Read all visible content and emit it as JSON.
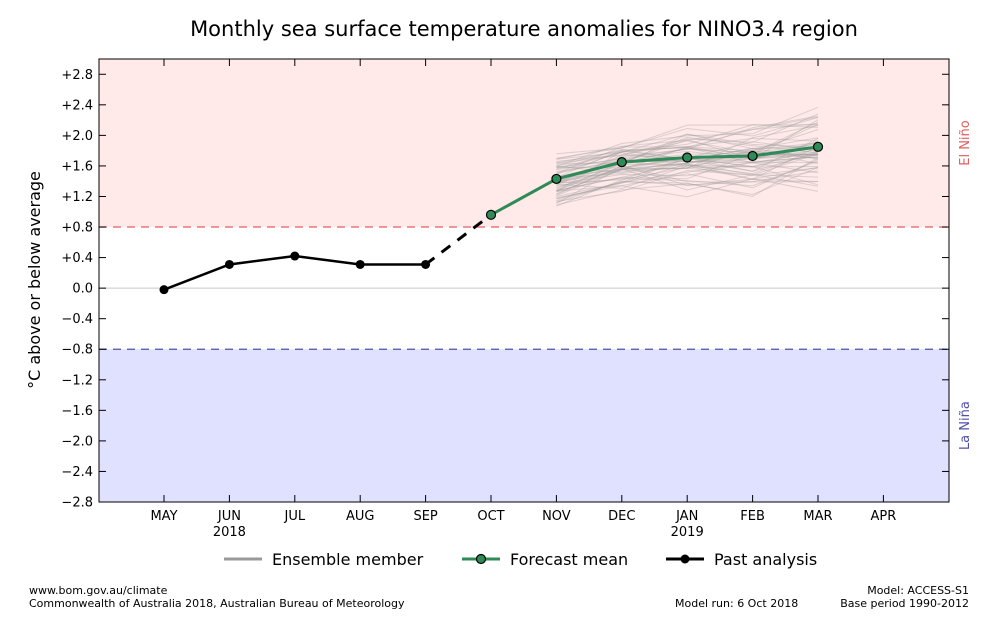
{
  "chart_data": {
    "type": "line",
    "title": "Monthly sea surface temperature anomalies for NINO3.4 region",
    "ylabel": "°C above or below average",
    "xlabel": "",
    "ylim": [
      -2.8,
      3.0
    ],
    "yticks": [
      -2.8,
      -2.4,
      -2.0,
      -1.6,
      -1.2,
      -0.8,
      -0.4,
      0.0,
      0.4,
      0.8,
      1.2,
      1.6,
      2.0,
      2.4,
      2.8
    ],
    "ytick_labels": [
      "−2.8",
      "−2.4",
      "−2.0",
      "−1.6",
      "−1.2",
      "−0.8",
      "−0.4",
      "0.0",
      "+0.4",
      "+0.8",
      "+1.2",
      "+1.6",
      "+2.0",
      "+2.4",
      "+2.8"
    ],
    "categories": [
      "MAY",
      "JUN",
      "JUL",
      "AUG",
      "SEP",
      "OCT",
      "NOV",
      "DEC",
      "JAN",
      "FEB",
      "MAR",
      "APR"
    ],
    "year_labels": [
      {
        "index": 1,
        "label": "2018"
      },
      {
        "index": 8,
        "label": "2019"
      }
    ],
    "thresholds": {
      "el_nino": 0.8,
      "la_nina": -0.8
    },
    "regions": {
      "el_nino_label": "El Niño",
      "la_nina_label": "La Niña",
      "el_nino_color": "#ffe9e9",
      "la_nina_color": "#e0e0ff",
      "el_nino_line": "#e06060",
      "la_nina_line": "#5050a8"
    },
    "series": [
      {
        "name": "Past analysis",
        "color": "#000000",
        "x": [
          0,
          1,
          2,
          3,
          4
        ],
        "values": [
          -0.02,
          0.31,
          0.42,
          0.31,
          0.31
        ]
      },
      {
        "name": "Forecast mean",
        "color": "#2e8b57",
        "x": [
          5,
          6,
          7,
          8,
          9,
          10
        ],
        "values": [
          0.96,
          1.43,
          1.65,
          1.71,
          1.73,
          1.85
        ]
      },
      {
        "name": "Ensemble member",
        "color": "#9a9a9a",
        "x_start": 6,
        "x_end": 10,
        "spread": [
          0.35,
          0.42,
          0.45,
          0.5,
          0.55
        ],
        "count": 60
      }
    ],
    "connector": {
      "from_index": 4,
      "to_index": 5,
      "from_value": 0.31,
      "to_value": 0.96
    },
    "legend_position": "bottom"
  },
  "legend": {
    "ensemble": "Ensemble member",
    "forecast": "Forecast mean",
    "past": "Past analysis"
  },
  "footer": {
    "left_line1": "www.bom.gov.au/climate",
    "left_line2": "Commonwealth of Australia 2018, Australian Bureau of Meteorology",
    "model_run": "Model run: 6 Oct 2018",
    "model": "Model: ACCESS-S1",
    "base_period": "Base period 1990-2012"
  }
}
